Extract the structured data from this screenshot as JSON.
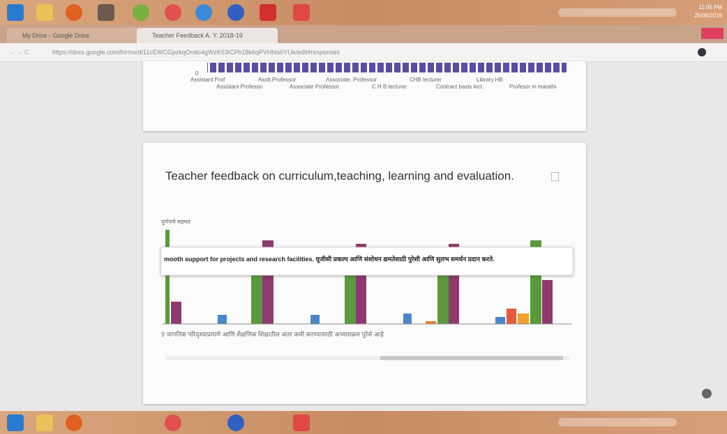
{
  "taskbar": {
    "time": "11:05 PM",
    "date": "25/06/2019"
  },
  "tabs": [
    "My Drive - Google Drive",
    "Teacher Feedback A. Y. 2018-19"
  ],
  "address_bar": {
    "url": "https://docs.google.com/forms/d/11cEWCGpzkqOndo4gWzK53iCPh18k6qPVHbIs0YUk/edit#responses"
  },
  "previous_chart": {
    "axis_zero": 0,
    "labels_row1": [
      "Assistant Prof",
      "Asstt.Professor",
      "Associate. Professor",
      "CHB lecturer",
      "Library HB"
    ],
    "labels_row2": [
      "Assistant Professo",
      "Associate Professor",
      "C H B lecturer",
      "Contract basis lect.",
      "Profesor in marathi"
    ]
  },
  "card": {
    "title": "Teacher feedback on curriculum,teaching, learning and evaluation.",
    "legend_fragment": "पूर्णपणे सहमत",
    "tooltip": "mooth support for projects and research facilities. यूजीसी प्रकल्प आणि संशोधन क्षमतेसाठी पुरेशी आणि सुलभ समर्थन प्रदान करते.",
    "axis_label_fragment": "9 जागतिक परिदृश्याप्रमाणे आणि शैक्षणिक शिक्षातील अंतर कमी करण्यासाठी अभ्यासक्रम पुरेसे आहे"
  }
}
